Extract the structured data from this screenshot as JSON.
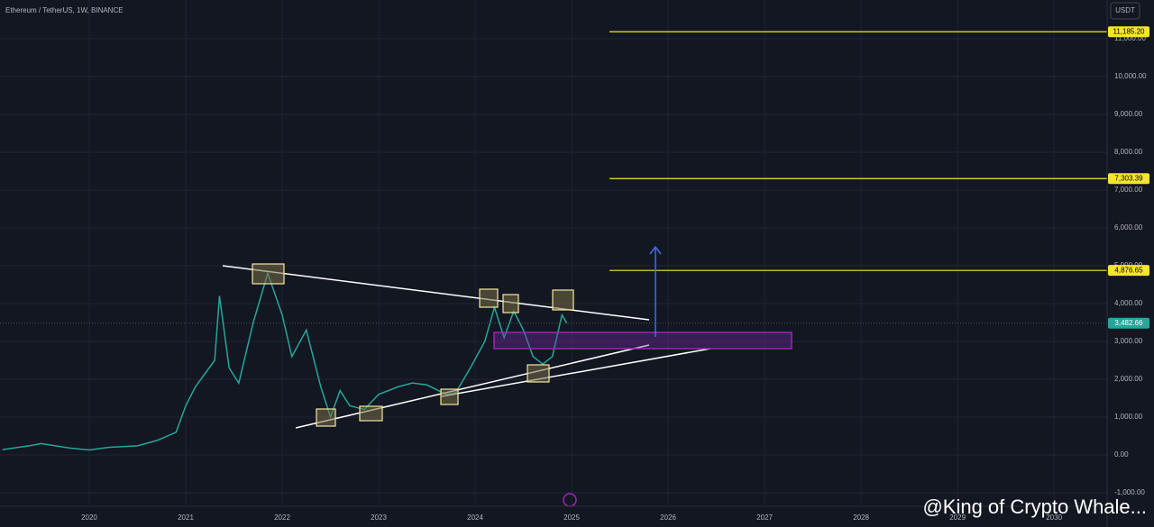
{
  "header": {
    "symbol": "Ethereum / TetherUS, 1W, BINANCE",
    "currency_button": "USDT"
  },
  "watermark": "@King of Crypto Whale...",
  "chart_data": {
    "type": "line",
    "x": [
      2019.1,
      2019.4,
      2019.5,
      2019.8,
      2020.0,
      2020.2,
      2020.5,
      2020.7,
      2020.9,
      2021.0,
      2021.1,
      2021.3,
      2021.35,
      2021.45,
      2021.55,
      2021.7,
      2021.85,
      2022.0,
      2022.1,
      2022.25,
      2022.4,
      2022.5,
      2022.6,
      2022.7,
      2022.85,
      2023.0,
      2023.2,
      2023.35,
      2023.5,
      2023.7,
      2023.8,
      2023.95,
      2024.1,
      2024.2,
      2024.3,
      2024.4,
      2024.5,
      2024.6,
      2024.7,
      2024.8,
      2024.9,
      2024.95
    ],
    "values": [
      140,
      250,
      300,
      180,
      130,
      200,
      240,
      380,
      600,
      1300,
      1800,
      2500,
      4200,
      2300,
      1900,
      3500,
      4800,
      3700,
      2600,
      3300,
      1800,
      1000,
      1700,
      1300,
      1200,
      1600,
      1800,
      1900,
      1850,
      1600,
      1650,
      2300,
      3000,
      3900,
      3100,
      3800,
      3300,
      2600,
      2400,
      2600,
      3700,
      3482.66
    ],
    "color": "#26a69a",
    "xlim": [
      2019.075,
      2030.55
    ],
    "ylim": [
      -1310,
      12024
    ],
    "xticks": [
      2020,
      2021,
      2022,
      2023,
      2024,
      2025,
      2026,
      2027,
      2028,
      2029,
      2030
    ],
    "yticks": [
      {
        "value": -1000,
        "label": "-1,000.00"
      },
      {
        "value": 0,
        "label": "0.00"
      },
      {
        "value": 1000,
        "label": "1,000.00"
      },
      {
        "value": 2000,
        "label": "2,000.00"
      },
      {
        "value": 3000,
        "label": "3,000.00"
      },
      {
        "value": 4000,
        "label": "4,000.00"
      },
      {
        "value": 5000,
        "label": "5,000.00"
      },
      {
        "value": 6000,
        "label": "6,000.00"
      },
      {
        "value": 7000,
        "label": "7,000.00"
      },
      {
        "value": 8000,
        "label": "8,000.00"
      },
      {
        "value": 9000,
        "label": "9,000.00"
      },
      {
        "value": 10000,
        "label": "10,000.00"
      },
      {
        "value": 11000,
        "label": "11,000.00"
      }
    ],
    "grid": true,
    "levels": [
      {
        "value": 11185.2,
        "label": "11,185.20"
      },
      {
        "value": 7303.39,
        "label": "7,303.39"
      },
      {
        "value": 4876.65,
        "label": "4,876.65"
      }
    ],
    "level_color": "#f5e52b",
    "last_price": {
      "value": 3482.66,
      "label": "3,482.66"
    }
  }
}
